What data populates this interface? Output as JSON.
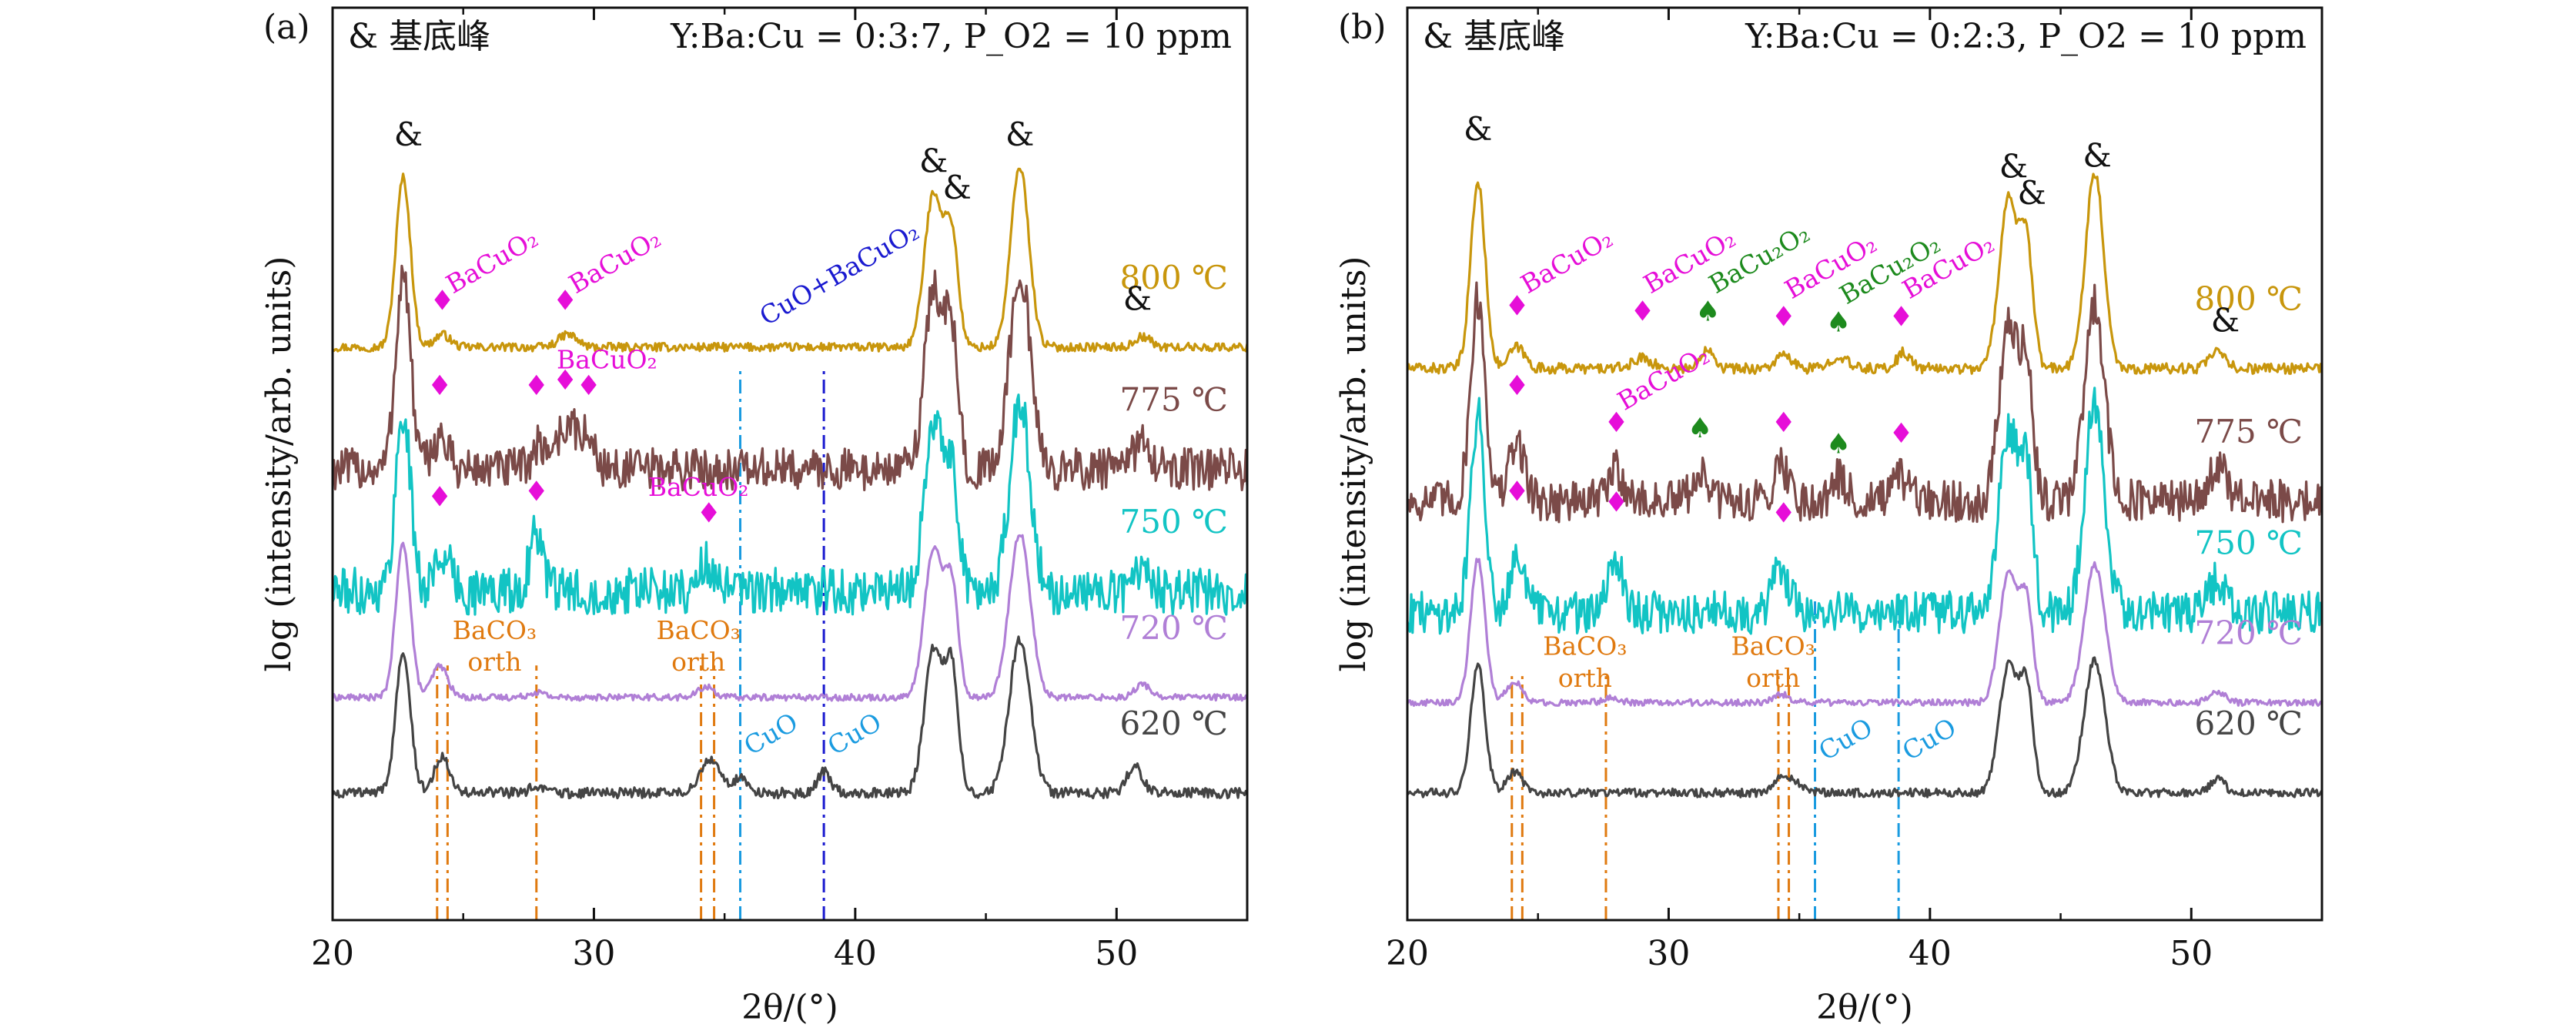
{
  "figure": {
    "xlabel": "2θ/(°)",
    "ylabel": "log (intensity/arb. units)"
  },
  "chart_data": [
    {
      "type": "line",
      "panel": "(a)",
      "legend_note": "& 基底峰",
      "condition": "Y:Ba:Cu = 0:3:7, P_O2 = 10 ppm",
      "xlabel": "2θ/(°)",
      "ylabel": "log (intensity/arb. units)",
      "xlim": [
        20,
        55
      ],
      "x_ticks": [
        20,
        30,
        40,
        50
      ],
      "series": [
        {
          "name": "800 ℃",
          "color": "#c8960c",
          "offset": 4.2,
          "noise": 0.04,
          "peaks": [
            [
              22.7,
              1.6,
              0.28
            ],
            [
              24.2,
              0.12,
              0.3
            ],
            [
              29.0,
              0.12,
              0.35
            ],
            [
              43.0,
              1.45,
              0.35
            ],
            [
              43.7,
              1.0,
              0.25
            ],
            [
              46.3,
              1.7,
              0.35
            ],
            [
              51.0,
              0.1,
              0.3
            ]
          ]
        },
        {
          "name": "775 ℃",
          "color": "#7b4a48",
          "offset": 3.05,
          "noise": 0.2,
          "peaks": [
            [
              22.7,
              1.85,
              0.28
            ],
            [
              24.1,
              0.3,
              0.3
            ],
            [
              27.9,
              0.2,
              0.3
            ],
            [
              29.0,
              0.4,
              0.45
            ],
            [
              29.8,
              0.2,
              0.3
            ],
            [
              43.0,
              1.7,
              0.35
            ],
            [
              43.7,
              1.2,
              0.25
            ],
            [
              46.3,
              1.9,
              0.38
            ],
            [
              51.0,
              0.3,
              0.3
            ]
          ]
        },
        {
          "name": "750 ℃",
          "color": "#12c4c4",
          "offset": 1.9,
          "noise": 0.22,
          "peaks": [
            [
              22.7,
              1.7,
              0.28
            ],
            [
              24.2,
              0.35,
              0.3
            ],
            [
              27.8,
              0.55,
              0.25
            ],
            [
              34.3,
              0.25,
              0.3
            ],
            [
              43.0,
              1.55,
              0.35
            ],
            [
              43.7,
              1.1,
              0.25
            ],
            [
              46.3,
              1.8,
              0.38
            ],
            [
              51.0,
              0.25,
              0.3
            ]
          ]
        },
        {
          "name": "720 ℃",
          "color": "#b07fd6",
          "offset": 0.9,
          "noise": 0.03,
          "peaks": [
            [
              22.7,
              1.45,
              0.28
            ],
            [
              24.1,
              0.3,
              0.3
            ],
            [
              27.8,
              0.05,
              0.3
            ],
            [
              34.3,
              0.1,
              0.3
            ],
            [
              43.0,
              1.4,
              0.35
            ],
            [
              43.7,
              1.0,
              0.25
            ],
            [
              46.3,
              1.55,
              0.4
            ],
            [
              51.0,
              0.12,
              0.3
            ]
          ]
        },
        {
          "name": "620 ℃",
          "color": "#444444",
          "offset": 0.0,
          "noise": 0.05,
          "peaks": [
            [
              22.7,
              1.35,
              0.28
            ],
            [
              24.2,
              0.35,
              0.3
            ],
            [
              27.8,
              0.05,
              0.3
            ],
            [
              34.3,
              0.25,
              0.3
            ],
            [
              34.7,
              0.15,
              0.3
            ],
            [
              35.6,
              0.15,
              0.25
            ],
            [
              38.8,
              0.2,
              0.25
            ],
            [
              43.0,
              1.35,
              0.35
            ],
            [
              43.7,
              1.1,
              0.25
            ],
            [
              46.3,
              1.45,
              0.4
            ],
            [
              50.7,
              0.25,
              0.3
            ]
          ]
        }
      ],
      "reference_lines": [
        {
          "x": 24.0,
          "color": "#e07a10",
          "style": "dashdot",
          "ymax": 1.2
        },
        {
          "x": 24.4,
          "color": "#e07a10",
          "style": "dashdot",
          "ymax": 1.2
        },
        {
          "x": 27.8,
          "color": "#e07a10",
          "style": "dashdot",
          "ymax": 1.2
        },
        {
          "x": 34.1,
          "color": "#e07a10",
          "style": "dashdot",
          "ymax": 1.2
        },
        {
          "x": 34.6,
          "color": "#e07a10",
          "style": "dashdot",
          "ymax": 1.2
        },
        {
          "x": 35.6,
          "color": "#1a9be0",
          "style": "dashdot",
          "ymax": 4.0
        },
        {
          "x": 38.8,
          "color": "#1a1ad0",
          "style": "dashdot",
          "ymax": 4.0
        }
      ],
      "markers": [
        {
          "symbol": "&",
          "x": 22.9,
          "y": 6.1,
          "color": "#111"
        },
        {
          "symbol": "&",
          "x": 43.0,
          "y": 5.85,
          "color": "#111"
        },
        {
          "symbol": "&",
          "x": 43.9,
          "y": 5.6,
          "color": "#111"
        },
        {
          "symbol": "&",
          "x": 46.3,
          "y": 6.1,
          "color": "#111"
        },
        {
          "symbol": "&",
          "x": 50.8,
          "y": 4.55,
          "color": "#111"
        },
        {
          "symbol": "♦",
          "x": 24.2,
          "y": 4.55,
          "color": "#e60ed8"
        },
        {
          "symbol": "♦",
          "x": 28.9,
          "y": 4.55,
          "color": "#e60ed8"
        },
        {
          "symbol": "♦",
          "x": 24.1,
          "y": 3.75,
          "color": "#e60ed8"
        },
        {
          "symbol": "♦",
          "x": 27.8,
          "y": 3.75,
          "color": "#e60ed8"
        },
        {
          "symbol": "♦",
          "x": 28.9,
          "y": 3.8,
          "color": "#e60ed8"
        },
        {
          "symbol": "♦",
          "x": 29.8,
          "y": 3.75,
          "color": "#e60ed8"
        },
        {
          "symbol": "♦",
          "x": 24.1,
          "y": 2.7,
          "color": "#e60ed8"
        },
        {
          "symbol": "♦",
          "x": 27.8,
          "y": 2.75,
          "color": "#e60ed8"
        },
        {
          "symbol": "♦",
          "x": 34.4,
          "y": 2.55,
          "color": "#e60ed8"
        }
      ],
      "annotations": [
        {
          "text": "BaCuO₂",
          "x": 24.6,
          "y": 4.7,
          "color": "#e60ed8",
          "rotate": -30
        },
        {
          "text": "BaCuO₂",
          "x": 29.3,
          "y": 4.7,
          "color": "#e60ed8",
          "rotate": -30
        },
        {
          "text": "CuO+BaCuO₂",
          "x": 36.6,
          "y": 4.4,
          "color": "#1a1ad0",
          "rotate": -30
        },
        {
          "text": "BaCuO₂",
          "x": 30.5,
          "y": 4.0,
          "color": "#e60ed8",
          "rotate": 0
        },
        {
          "text": "BaCuO₂",
          "x": 34.0,
          "y": 2.8,
          "color": "#e60ed8",
          "rotate": 0
        },
        {
          "text": "BaCO₃",
          "x": 26.2,
          "y": 1.45,
          "color": "#e07a10",
          "rotate": 0
        },
        {
          "text": "orth",
          "x": 26.2,
          "y": 1.15,
          "color": "#e07a10",
          "rotate": 0
        },
        {
          "text": "BaCO₃",
          "x": 34.0,
          "y": 1.45,
          "color": "#e07a10",
          "rotate": 0
        },
        {
          "text": "orth",
          "x": 34.0,
          "y": 1.15,
          "color": "#e07a10",
          "rotate": 0
        },
        {
          "text": "CuO",
          "x": 36.0,
          "y": 0.35,
          "color": "#1a9be0",
          "rotate": -30
        },
        {
          "text": "CuO",
          "x": 39.2,
          "y": 0.35,
          "color": "#1a9be0",
          "rotate": -30
        }
      ]
    },
    {
      "type": "line",
      "panel": "(b)",
      "legend_note": "& 基底峰",
      "condition": "Y:Ba:Cu = 0:2:3, P_O2 = 10 ppm",
      "xlabel": "2θ/(°)",
      "ylabel": "log (intensity/arb. units)",
      "xlim": [
        20,
        55
      ],
      "x_ticks": [
        20,
        30,
        40,
        50
      ],
      "series": [
        {
          "name": "800 ℃",
          "color": "#c8960c",
          "offset": 4.0,
          "noise": 0.05,
          "peaks": [
            [
              22.7,
              1.75,
              0.28
            ],
            [
              24.2,
              0.2,
              0.3
            ],
            [
              29.0,
              0.1,
              0.35
            ],
            [
              31.5,
              0.2,
              0.25
            ],
            [
              34.4,
              0.12,
              0.3
            ],
            [
              36.5,
              0.12,
              0.3
            ],
            [
              39.0,
              0.15,
              0.25
            ],
            [
              43.0,
              1.6,
              0.35
            ],
            [
              43.7,
              1.1,
              0.25
            ],
            [
              46.3,
              1.85,
              0.35
            ],
            [
              51.0,
              0.15,
              0.3
            ]
          ]
        },
        {
          "name": "775 ℃",
          "color": "#7b4a48",
          "offset": 2.75,
          "noise": 0.2,
          "peaks": [
            [
              22.7,
              1.9,
              0.28
            ],
            [
              24.2,
              0.55,
              0.3
            ],
            [
              28.0,
              0.3,
              0.3
            ],
            [
              31.2,
              0.25,
              0.3
            ],
            [
              34.3,
              0.35,
              0.3
            ],
            [
              36.5,
              0.2,
              0.3
            ],
            [
              38.9,
              0.2,
              0.3
            ],
            [
              43.0,
              1.65,
              0.35
            ],
            [
              43.7,
              1.2,
              0.25
            ],
            [
              46.3,
              1.85,
              0.38
            ],
            [
              51.0,
              0.35,
              0.3
            ]
          ]
        },
        {
          "name": "750 ℃",
          "color": "#12c4c4",
          "offset": 1.7,
          "noise": 0.2,
          "peaks": [
            [
              22.7,
              1.85,
              0.28
            ],
            [
              24.2,
              0.55,
              0.3
            ],
            [
              28.0,
              0.5,
              0.28
            ],
            [
              34.3,
              0.4,
              0.3
            ],
            [
              43.0,
              1.7,
              0.35
            ],
            [
              43.7,
              1.3,
              0.25
            ],
            [
              46.3,
              1.95,
              0.38
            ],
            [
              51.0,
              0.3,
              0.3
            ]
          ]
        },
        {
          "name": "720 ℃",
          "color": "#b07fd6",
          "offset": 0.85,
          "noise": 0.03,
          "peaks": [
            [
              22.7,
              1.35,
              0.28
            ],
            [
              24.1,
              0.2,
              0.3
            ],
            [
              27.8,
              0.05,
              0.3
            ],
            [
              34.3,
              0.08,
              0.3
            ],
            [
              43.0,
              1.2,
              0.35
            ],
            [
              43.7,
              0.9,
              0.25
            ],
            [
              46.3,
              1.3,
              0.4
            ],
            [
              51.0,
              0.1,
              0.3
            ]
          ]
        },
        {
          "name": "620 ℃",
          "color": "#444444",
          "offset": 0.0,
          "noise": 0.04,
          "peaks": [
            [
              22.7,
              1.2,
              0.28
            ],
            [
              24.1,
              0.2,
              0.3
            ],
            [
              34.3,
              0.12,
              0.3
            ],
            [
              34.8,
              0.1,
              0.3
            ],
            [
              43.0,
              1.2,
              0.35
            ],
            [
              43.7,
              0.95,
              0.25
            ],
            [
              46.3,
              1.25,
              0.4
            ],
            [
              51.0,
              0.12,
              0.3
            ]
          ]
        }
      ],
      "reference_lines": [
        {
          "x": 24.0,
          "color": "#e07a10",
          "style": "dashdot",
          "ymax": 1.1
        },
        {
          "x": 24.4,
          "color": "#e07a10",
          "style": "dashdot",
          "ymax": 1.1
        },
        {
          "x": 27.6,
          "color": "#e07a10",
          "style": "dashdot",
          "ymax": 1.1
        },
        {
          "x": 34.2,
          "color": "#e07a10",
          "style": "dashdot",
          "ymax": 1.1
        },
        {
          "x": 34.6,
          "color": "#e07a10",
          "style": "dashdot",
          "ymax": 1.1
        },
        {
          "x": 35.6,
          "color": "#1a9be0",
          "style": "dashdot",
          "ymax": 1.85
        },
        {
          "x": 38.8,
          "color": "#1a9be0",
          "style": "dashdot",
          "ymax": 1.85
        }
      ],
      "markers": [
        {
          "symbol": "&",
          "x": 22.7,
          "y": 6.15,
          "color": "#111"
        },
        {
          "symbol": "&",
          "x": 43.2,
          "y": 5.8,
          "color": "#111"
        },
        {
          "symbol": "&",
          "x": 43.9,
          "y": 5.55,
          "color": "#111"
        },
        {
          "symbol": "&",
          "x": 46.4,
          "y": 5.9,
          "color": "#111"
        },
        {
          "symbol": "&",
          "x": 51.3,
          "y": 4.35,
          "color": "#111"
        },
        {
          "symbol": "♦",
          "x": 24.2,
          "y": 4.5,
          "color": "#e60ed8"
        },
        {
          "symbol": "♦",
          "x": 29.0,
          "y": 4.45,
          "color": "#e60ed8"
        },
        {
          "symbol": "♠",
          "x": 31.5,
          "y": 4.45,
          "color": "#1d8a1d"
        },
        {
          "symbol": "♦",
          "x": 34.4,
          "y": 4.4,
          "color": "#e60ed8"
        },
        {
          "symbol": "♠",
          "x": 36.5,
          "y": 4.35,
          "color": "#1d8a1d"
        },
        {
          "symbol": "♦",
          "x": 38.9,
          "y": 4.4,
          "color": "#e60ed8"
        },
        {
          "symbol": "♦",
          "x": 24.2,
          "y": 3.75,
          "color": "#e60ed8"
        },
        {
          "symbol": "♦",
          "x": 28.0,
          "y": 3.4,
          "color": "#e60ed8"
        },
        {
          "symbol": "♠",
          "x": 31.2,
          "y": 3.35,
          "color": "#1d8a1d"
        },
        {
          "symbol": "♦",
          "x": 34.4,
          "y": 3.4,
          "color": "#e60ed8"
        },
        {
          "symbol": "♠",
          "x": 36.5,
          "y": 3.2,
          "color": "#1d8a1d"
        },
        {
          "symbol": "♦",
          "x": 38.9,
          "y": 3.3,
          "color": "#e60ed8"
        },
        {
          "symbol": "♦",
          "x": 24.2,
          "y": 2.75,
          "color": "#e60ed8"
        },
        {
          "symbol": "♦",
          "x": 28.0,
          "y": 2.65,
          "color": "#e60ed8"
        },
        {
          "symbol": "♦",
          "x": 34.4,
          "y": 2.55,
          "color": "#e60ed8"
        }
      ],
      "annotations": [
        {
          "text": "BaCuO₂",
          "x": 24.6,
          "y": 4.7,
          "color": "#e60ed8",
          "rotate": -30
        },
        {
          "text": "BaCuO₂",
          "x": 29.3,
          "y": 4.7,
          "color": "#e60ed8",
          "rotate": -30
        },
        {
          "text": "BaCu₂O₂",
          "x": 31.8,
          "y": 4.7,
          "color": "#1d8a1d",
          "rotate": -30
        },
        {
          "text": "BaCuO₂",
          "x": 34.7,
          "y": 4.65,
          "color": "#e60ed8",
          "rotate": -30
        },
        {
          "text": "BaCu₂O₂",
          "x": 36.8,
          "y": 4.6,
          "color": "#1d8a1d",
          "rotate": -30
        },
        {
          "text": "BaCuO₂",
          "x": 39.2,
          "y": 4.65,
          "color": "#e60ed8",
          "rotate": -30
        },
        {
          "text": "BaCuO₂",
          "x": 28.3,
          "y": 3.6,
          "color": "#e60ed8",
          "rotate": -30
        },
        {
          "text": "BaCO₃",
          "x": 26.8,
          "y": 1.3,
          "color": "#e07a10",
          "rotate": 0
        },
        {
          "text": "orth",
          "x": 26.8,
          "y": 1.0,
          "color": "#e07a10",
          "rotate": 0
        },
        {
          "text": "BaCO₃",
          "x": 34.0,
          "y": 1.3,
          "color": "#e07a10",
          "rotate": 0
        },
        {
          "text": "orth",
          "x": 34.0,
          "y": 1.0,
          "color": "#e07a10",
          "rotate": 0
        },
        {
          "text": "CuO",
          "x": 36.0,
          "y": 0.3,
          "color": "#1a9be0",
          "rotate": -30
        },
        {
          "text": "CuO",
          "x": 39.2,
          "y": 0.3,
          "color": "#1a9be0",
          "rotate": -30
        }
      ]
    }
  ]
}
